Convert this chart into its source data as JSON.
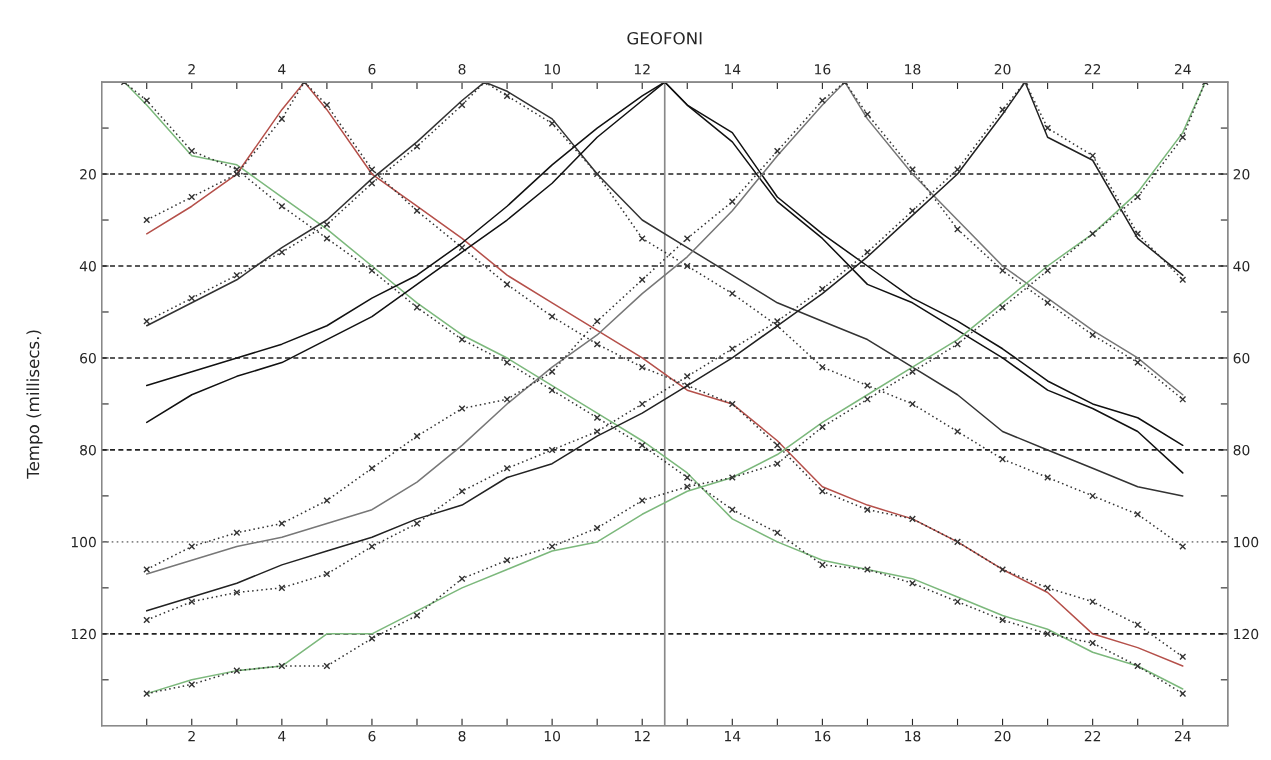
{
  "chart_data": {
    "type": "line",
    "x2label": "GEOFONI",
    "ylabel": "Tempo (millisecs.)",
    "xlim": [
      0,
      25
    ],
    "x2lim": [
      0,
      25
    ],
    "ylim": [
      140,
      0
    ],
    "y2lim": [
      140,
      0
    ],
    "xticks": [
      {
        "value": 1,
        "label": null
      },
      2,
      {
        "value": 3,
        "label": null
      },
      4,
      {
        "value": 5,
        "label": null
      },
      6,
      {
        "value": 7,
        "label": null
      },
      8,
      {
        "value": 9,
        "label": null
      },
      10,
      {
        "value": 11,
        "label": null
      },
      12,
      {
        "value": 13,
        "label": null
      },
      14,
      {
        "value": 15,
        "label": null
      },
      16,
      {
        "value": 17,
        "label": null
      },
      18,
      {
        "value": 19,
        "label": null
      },
      20,
      {
        "value": 21,
        "label": null
      },
      22,
      {
        "value": 23,
        "label": null
      },
      24
    ],
    "x2ticks": [
      {
        "value": 1,
        "label": null
      },
      2,
      {
        "value": 3,
        "label": null
      },
      4,
      {
        "value": 5,
        "label": null
      },
      6,
      {
        "value": 7,
        "label": null
      },
      8,
      {
        "value": 9,
        "label": null
      },
      10,
      {
        "value": 11,
        "label": null
      },
      12,
      {
        "value": 13,
        "label": null
      },
      14,
      {
        "value": 15,
        "label": null
      },
      16,
      {
        "value": 17,
        "label": null
      },
      18,
      {
        "value": 19,
        "label": null
      },
      20,
      {
        "value": 21,
        "label": null
      },
      22,
      {
        "value": 23,
        "label": null
      },
      24
    ],
    "yticks": [
      {
        "value": 10,
        "label": null
      },
      20,
      {
        "value": 30,
        "label": null
      },
      40,
      {
        "value": 50,
        "label": null
      },
      60,
      {
        "value": 70,
        "label": null
      },
      80,
      {
        "value": 90,
        "label": null
      },
      100,
      {
        "value": 110,
        "label": null
      },
      120,
      {
        "value": 130,
        "label": null
      }
    ],
    "y2ticks": [
      {
        "value": 10,
        "label": null
      },
      20,
      {
        "value": 30,
        "label": null
      },
      40,
      {
        "value": 50,
        "label": null
      },
      60,
      {
        "value": 70,
        "label": null
      },
      80,
      {
        "value": 90,
        "label": null
      },
      100,
      {
        "value": 110,
        "label": null
      },
      120,
      {
        "value": 130,
        "label": null
      }
    ],
    "ref_lines": [
      {
        "axis": "y",
        "value": 20,
        "color": "#222222",
        "line_style": "dashed"
      },
      {
        "axis": "y",
        "value": 40,
        "color": "#222222",
        "line_style": "dashed"
      },
      {
        "axis": "y",
        "value": 60,
        "color": "#222222",
        "line_style": "dashed"
      },
      {
        "axis": "y",
        "value": 80,
        "color": "#222222",
        "line_style": "dashed"
      },
      {
        "axis": "y",
        "value": 100,
        "color": "#888888",
        "line_style": "dotted"
      },
      {
        "axis": "y",
        "value": 120,
        "color": "#222222",
        "line_style": "dashed"
      },
      {
        "axis": "x",
        "value": 12.5,
        "color": "#888888",
        "line_style": "solid"
      }
    ],
    "series": [
      {
        "color": "#7cb87c",
        "line_style": "solid",
        "marker": "none",
        "x": [
          0.5,
          1,
          2,
          3,
          4,
          5,
          6,
          7,
          8,
          9,
          10,
          11,
          12,
          13,
          14,
          15,
          16,
          17,
          18,
          19,
          20,
          21,
          22,
          23,
          24
        ],
        "values": [
          0,
          5,
          16,
          18,
          25,
          32,
          40,
          48,
          55,
          60,
          66,
          72,
          78,
          85,
          95,
          100,
          104,
          106,
          108,
          112,
          116,
          119,
          124,
          127,
          132
        ]
      },
      {
        "color": "#333333",
        "line_style": "dotted",
        "marker": "cross",
        "x": [
          0.5,
          1,
          2,
          3,
          4,
          5,
          6,
          7,
          8,
          9,
          10,
          11,
          12,
          13,
          14,
          15,
          16,
          17,
          18,
          19,
          20,
          21,
          22,
          23,
          24
        ],
        "values": [
          0,
          4,
          15,
          19,
          27,
          34,
          41,
          49,
          56,
          61,
          67,
          73,
          79,
          86,
          93,
          98,
          105,
          106,
          109,
          113,
          117,
          120,
          122,
          127,
          133
        ]
      },
      {
        "color": "#b5504a",
        "line_style": "solid",
        "marker": "none",
        "x": [
          1,
          2,
          3,
          4,
          4.5,
          5,
          6,
          7,
          8,
          9,
          10,
          11,
          12,
          13,
          14,
          15,
          16,
          17,
          18,
          19,
          20,
          21,
          22,
          23,
          24
        ],
        "values": [
          33,
          27,
          20,
          6,
          0,
          6,
          20,
          27,
          34,
          42,
          48,
          54,
          60,
          67,
          70,
          78,
          88,
          92,
          95,
          100,
          106,
          111,
          120,
          123,
          127
        ]
      },
      {
        "color": "#333333",
        "line_style": "dotted",
        "marker": "cross",
        "x": [
          1,
          2,
          3,
          4,
          4.5,
          5,
          6,
          7,
          8,
          9,
          10,
          11,
          12,
          13,
          14,
          15,
          16,
          17,
          18,
          19,
          20,
          21,
          22,
          23,
          24
        ],
        "values": [
          30,
          25,
          20,
          8,
          0,
          5,
          19,
          28,
          36,
          44,
          51,
          57,
          62,
          66,
          70,
          79,
          89,
          93,
          95,
          100,
          106,
          110,
          113,
          118,
          125
        ]
      },
      {
        "color": "#333333",
        "line_style": "solid",
        "marker": "none",
        "x": [
          1,
          2,
          3,
          4,
          5,
          6,
          7,
          8,
          8.5,
          9,
          10,
          11,
          12,
          13,
          14,
          15,
          16,
          17,
          18,
          19,
          20,
          21,
          22,
          23,
          24
        ],
        "values": [
          53,
          48,
          43,
          36,
          30,
          21,
          13,
          4,
          0,
          2,
          8,
          20,
          30,
          36,
          42,
          48,
          52,
          56,
          62,
          68,
          76,
          80,
          84,
          88,
          90
        ]
      },
      {
        "color": "#333333",
        "line_style": "dotted",
        "marker": "cross",
        "x": [
          1,
          2,
          3,
          4,
          5,
          6,
          7,
          8,
          8.5,
          9,
          10,
          11,
          12,
          13,
          14,
          15,
          16,
          17,
          18,
          19,
          20,
          21,
          22,
          23,
          24
        ],
        "values": [
          52,
          47,
          42,
          37,
          31,
          22,
          14,
          5,
          0,
          3,
          9,
          20,
          34,
          40,
          46,
          53,
          62,
          66,
          70,
          76,
          82,
          86,
          90,
          94,
          101
        ]
      },
      {
        "color": "#111111",
        "line_style": "solid",
        "marker": "none",
        "x": [
          1,
          2,
          3,
          4,
          5,
          6,
          7,
          8,
          9,
          10,
          11,
          12,
          12.5,
          13,
          14,
          15,
          16,
          17,
          18,
          19,
          20,
          21,
          22,
          23,
          24
        ],
        "values": [
          66,
          63,
          60,
          57,
          53,
          47,
          42,
          35,
          27,
          18,
          10,
          3,
          0,
          5,
          11,
          25,
          33,
          40,
          47,
          52,
          58,
          65,
          70,
          73,
          79
        ]
      },
      {
        "color": "#111111",
        "line_style": "solid",
        "marker": "none",
        "x": [
          1,
          2,
          3,
          4,
          5,
          6,
          7,
          8,
          9,
          10,
          11,
          12,
          12.5,
          13,
          14,
          15,
          16,
          17,
          18,
          19,
          20,
          21,
          22,
          23,
          24
        ],
        "values": [
          74,
          68,
          64,
          61,
          56,
          51,
          44,
          37,
          30,
          22,
          12,
          4,
          0,
          5,
          13,
          26,
          34,
          44,
          48,
          54,
          60,
          67,
          71,
          76,
          85
        ]
      },
      {
        "color": "#777777",
        "line_style": "solid",
        "marker": "none",
        "x": [
          1,
          2,
          3,
          4,
          5,
          6,
          7,
          8,
          9,
          10,
          11,
          12,
          13,
          14,
          15,
          16,
          16.5,
          17,
          18,
          19,
          20,
          21,
          22,
          23,
          24
        ],
        "values": [
          107,
          104,
          101,
          99,
          96,
          93,
          87,
          79,
          70,
          62,
          55,
          46,
          38,
          28,
          16,
          5,
          0,
          8,
          20,
          30,
          40,
          47,
          54,
          60,
          68
        ]
      },
      {
        "color": "#333333",
        "line_style": "dotted",
        "marker": "cross",
        "x": [
          1,
          2,
          3,
          4,
          5,
          6,
          7,
          8,
          9,
          10,
          11,
          12,
          13,
          14,
          15,
          16,
          16.5,
          17,
          18,
          19,
          20,
          21,
          22,
          23,
          24
        ],
        "values": [
          106,
          101,
          98,
          96,
          91,
          84,
          77,
          71,
          69,
          63,
          52,
          43,
          34,
          26,
          15,
          4,
          0,
          7,
          19,
          32,
          41,
          48,
          55,
          61,
          69
        ]
      },
      {
        "color": "#222222",
        "line_style": "solid",
        "marker": "none",
        "x": [
          1,
          2,
          3,
          4,
          5,
          6,
          7,
          8,
          9,
          10,
          11,
          12,
          13,
          14,
          15,
          16,
          17,
          18,
          19,
          20,
          20.5,
          21,
          22,
          23,
          24
        ],
        "values": [
          115,
          112,
          109,
          105,
          102,
          99,
          95,
          92,
          86,
          83,
          77,
          72,
          66,
          60,
          53,
          46,
          38,
          29,
          20,
          7,
          0,
          12,
          17,
          34,
          42
        ]
      },
      {
        "color": "#333333",
        "line_style": "dotted",
        "marker": "cross",
        "x": [
          1,
          2,
          3,
          4,
          5,
          6,
          7,
          8,
          9,
          10,
          11,
          12,
          13,
          14,
          15,
          16,
          17,
          18,
          19,
          20,
          20.5,
          21,
          22,
          23,
          24
        ],
        "values": [
          117,
          113,
          111,
          110,
          107,
          101,
          96,
          89,
          84,
          80,
          76,
          70,
          64,
          58,
          52,
          45,
          37,
          28,
          19,
          6,
          0,
          10,
          16,
          33,
          43
        ]
      },
      {
        "color": "#7cb87c",
        "line_style": "solid",
        "marker": "none",
        "x": [
          1,
          2,
          3,
          4,
          5,
          6,
          7,
          8,
          9,
          10,
          11,
          12,
          13,
          14,
          15,
          16,
          17,
          18,
          19,
          20,
          21,
          22,
          23,
          24,
          24.5
        ],
        "values": [
          133,
          130,
          128,
          127,
          120,
          120,
          115,
          110,
          106,
          102,
          100,
          94,
          89,
          86,
          81,
          74,
          68,
          62,
          56,
          48,
          40,
          33,
          24,
          11,
          0
        ]
      },
      {
        "color": "#333333",
        "line_style": "dotted",
        "marker": "cross",
        "x": [
          1,
          2,
          3,
          4,
          5,
          6,
          7,
          8,
          9,
          10,
          11,
          12,
          13,
          14,
          15,
          16,
          17,
          18,
          19,
          20,
          21,
          22,
          23,
          24,
          24.5
        ],
        "values": [
          133,
          131,
          128,
          127,
          127,
          121,
          116,
          108,
          104,
          101,
          97,
          91,
          88,
          86,
          83,
          75,
          69,
          63,
          57,
          49,
          41,
          33,
          25,
          12,
          0
        ]
      }
    ]
  }
}
